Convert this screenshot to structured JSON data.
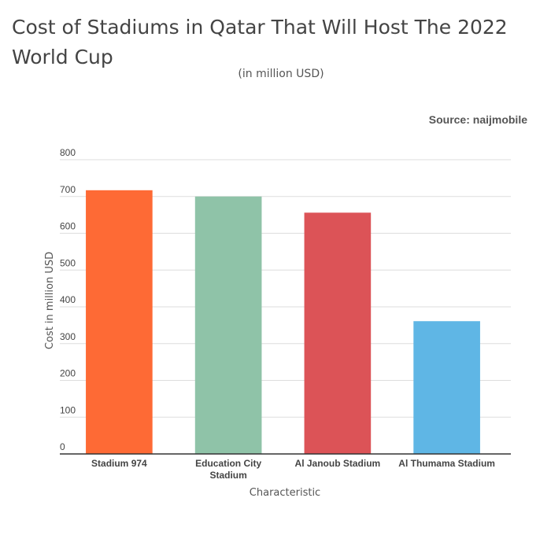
{
  "chart_data": {
    "type": "bar",
    "title": "Cost of Stadiums in Qatar That Will Host The 2022 World Cup",
    "subtitle": "(in million USD)",
    "source": "Source: naijmobile",
    "categories": [
      "Stadium 974",
      "Education City Stadium",
      "Al Janoub Stadium",
      "Al Thumama Stadium"
    ],
    "values": [
      717,
      700,
      656,
      361
    ],
    "colors": [
      "#fe6a35",
      "#8fc3a8",
      "#dc5357",
      "#5fb6e5"
    ],
    "xlabel": "Characteristic",
    "ylabel": "Cost in million USD",
    "ylim": [
      0,
      800
    ],
    "yticks": [
      0,
      100,
      200,
      300,
      400,
      500,
      600,
      700,
      800
    ],
    "grid": true,
    "legend": "none"
  }
}
